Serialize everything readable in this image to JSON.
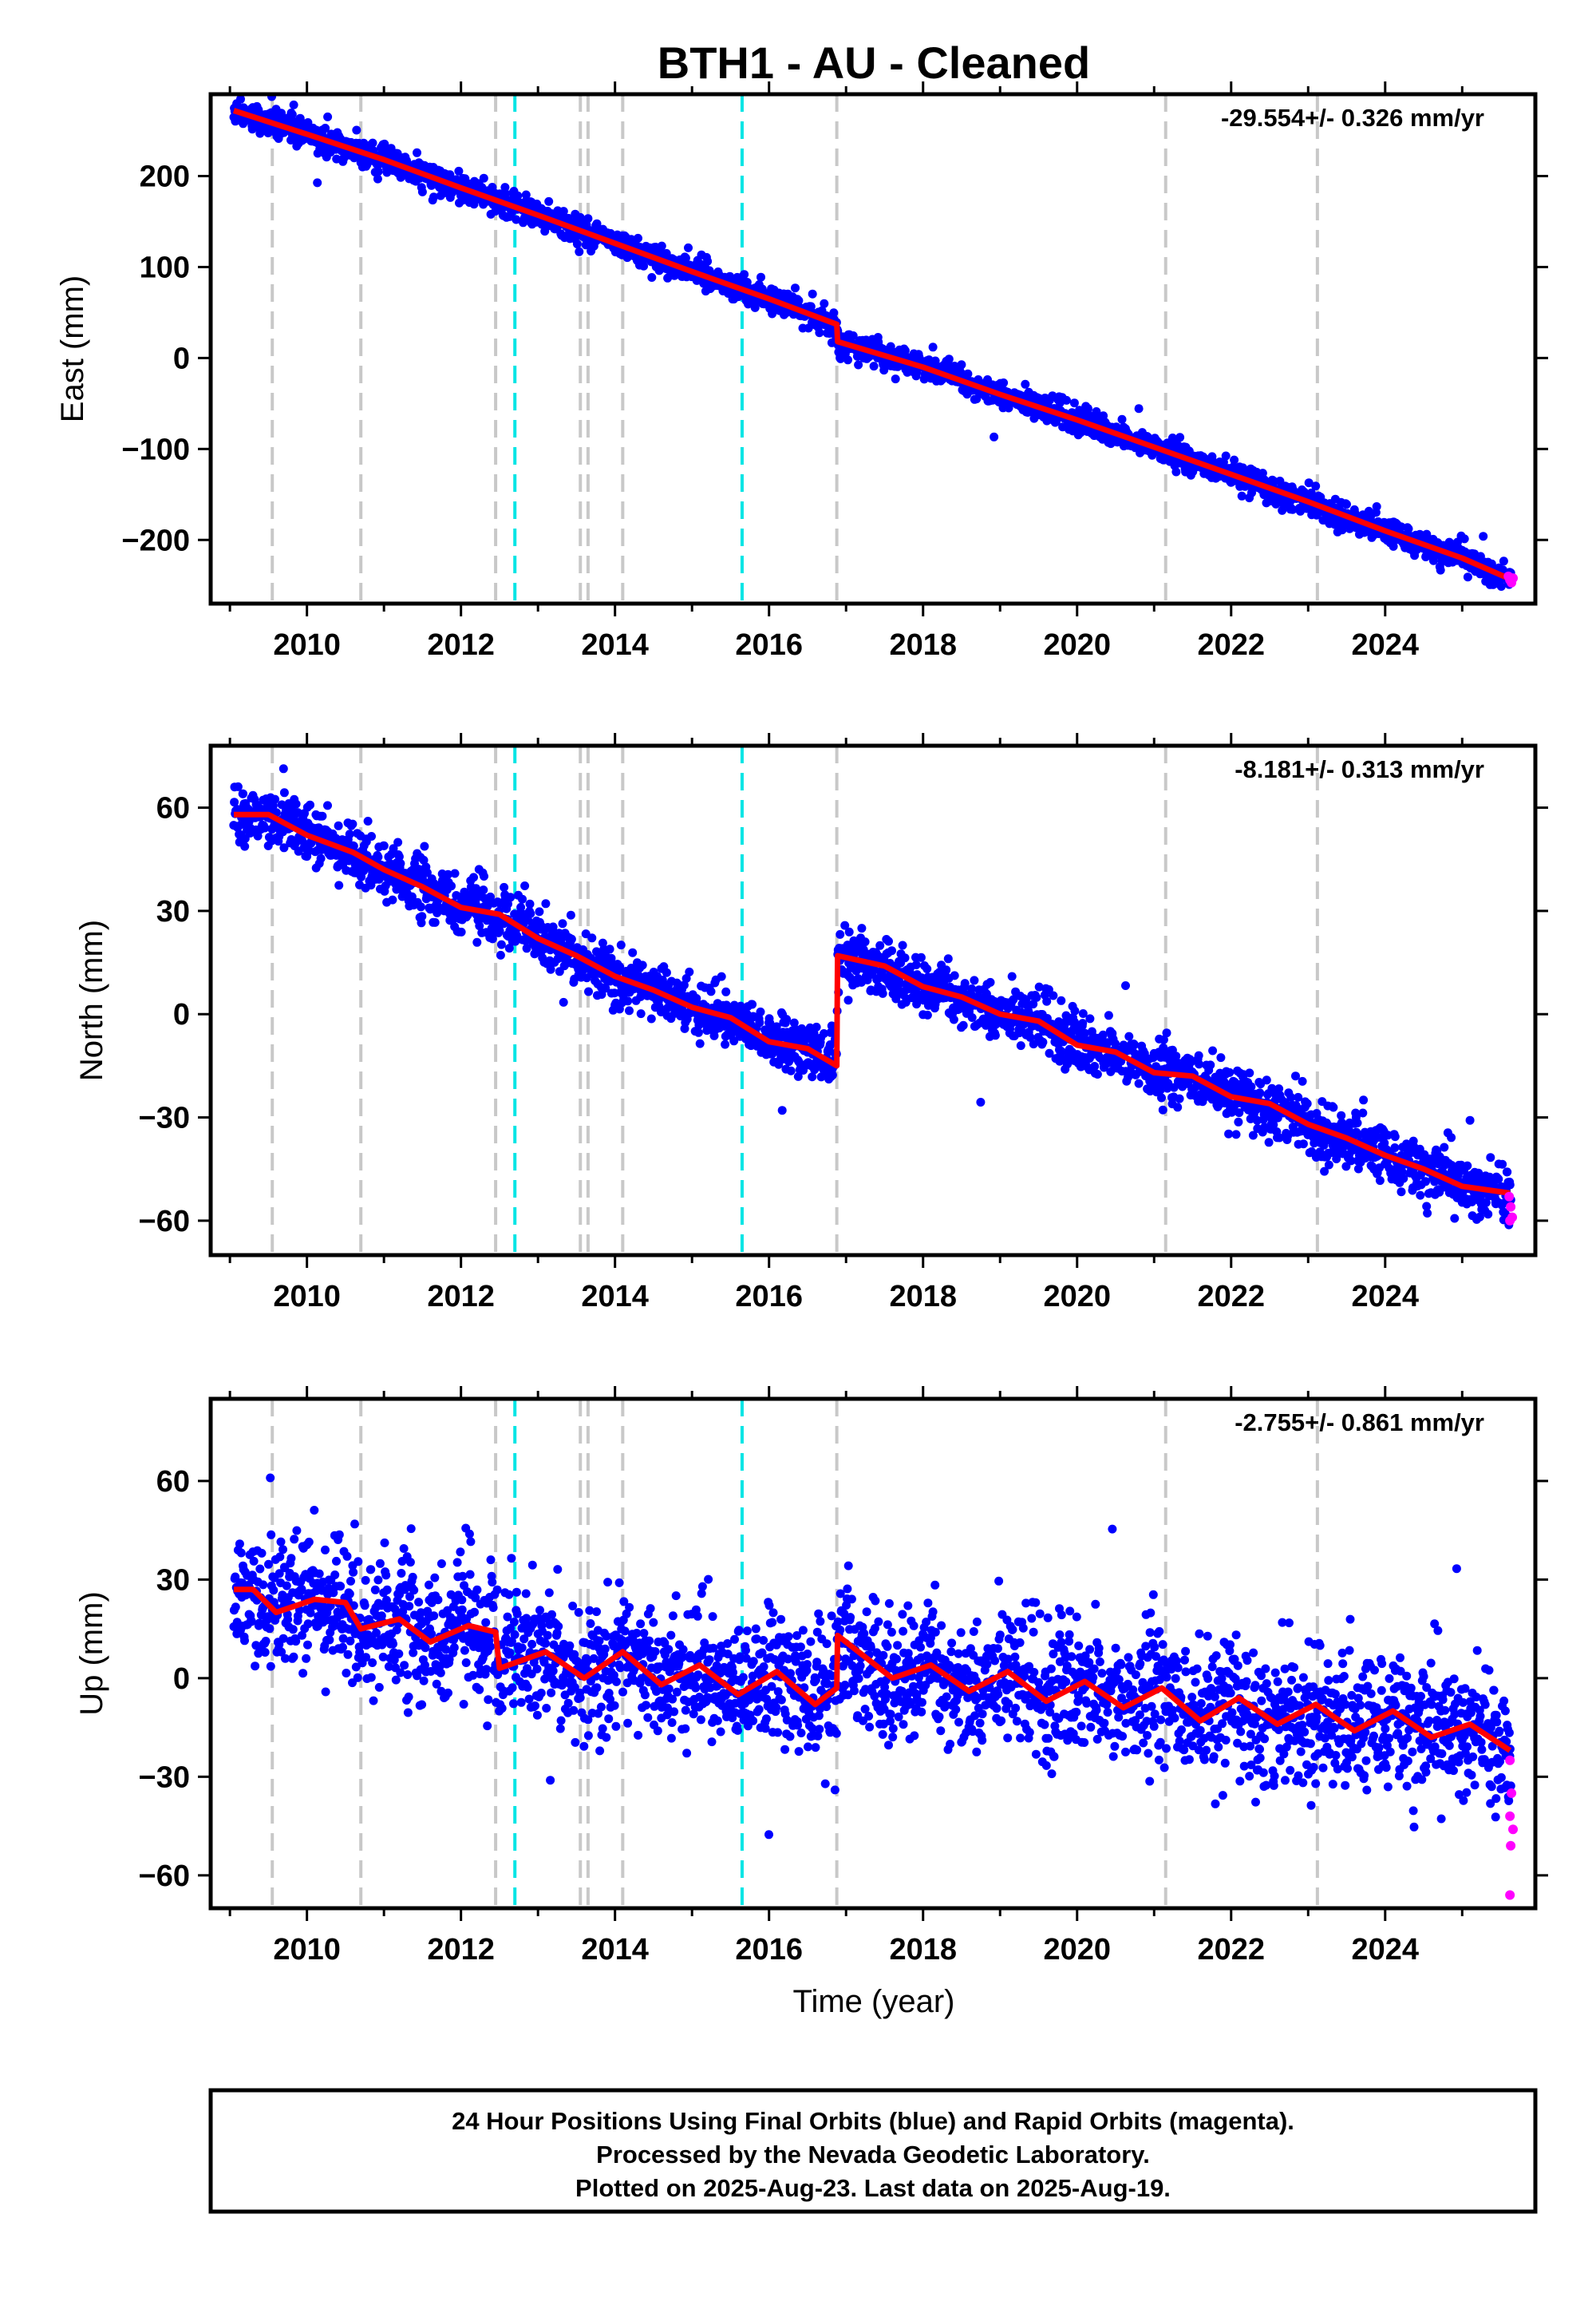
{
  "title": "BTH1  - AU - Cleaned",
  "xlabel": "Time (year)",
  "footer": [
    "24 Hour Positions Using Final Orbits (blue) and Rapid Orbits (magenta).",
    "Processed by the Nevada Geodetic Laboratory.",
    "Plotted on 2025-Aug-23. Last data on 2025-Aug-19."
  ],
  "colors": {
    "final": "#0000ff",
    "rapid": "#ff00ff",
    "model": "#ff0000",
    "event_gray": "#c8c8c8",
    "event_cyan": "#00e5e5"
  },
  "chart_data": [
    {
      "type": "scatter",
      "ylabel": "East (mm)",
      "rate": "-29.554+/- 0.326 mm/yr",
      "xlim": [
        2008.75,
        2025.95
      ],
      "ylim": [
        -270,
        290
      ],
      "x_ticks": [
        2010,
        2012,
        2014,
        2016,
        2018,
        2020,
        2022,
        2024
      ],
      "y_ticks": [
        -200,
        -100,
        0,
        100,
        200
      ],
      "y_tick_labels": [
        "−200",
        "−100",
        "0",
        "100",
        "200"
      ],
      "data_start": 2009.05,
      "data_end": 2025.63,
      "model": {
        "x": [
          2009.05,
          2010.0,
          2011.0,
          2012.0,
          2013.0,
          2014.0,
          2015.0,
          2016.0,
          2016.88,
          2016.89,
          2018.0,
          2019.0,
          2020.0,
          2021.0,
          2022.0,
          2023.0,
          2024.0,
          2025.0,
          2025.62
        ],
        "y": [
          272,
          246,
          218,
          187,
          157,
          126,
          95,
          65,
          37,
          18,
          -10,
          -40,
          -68,
          -98,
          -128,
          -158,
          -190,
          -220,
          -243
        ]
      },
      "scatter_spread": 7,
      "rapid_points": [
        [
          2025.6,
          -240
        ],
        [
          2025.62,
          -244
        ],
        [
          2025.64,
          -247
        ],
        [
          2025.66,
          -242
        ]
      ]
    },
    {
      "type": "scatter",
      "ylabel": "North (mm)",
      "rate": "-8.181+/- 0.313 mm/yr",
      "xlim": [
        2008.75,
        2025.95
      ],
      "ylim": [
        -70,
        78
      ],
      "x_ticks": [
        2010,
        2012,
        2014,
        2016,
        2018,
        2020,
        2022,
        2024
      ],
      "y_ticks": [
        -60,
        -30,
        0,
        30,
        60
      ],
      "y_tick_labels": [
        "−60",
        "−30",
        "0",
        "30",
        "60"
      ],
      "data_start": 2009.05,
      "data_end": 2025.63,
      "model": {
        "x": [
          2009.05,
          2009.5,
          2010.0,
          2010.6,
          2011.0,
          2011.5,
          2012.0,
          2012.5,
          2013.0,
          2013.5,
          2014.0,
          2014.5,
          2015.0,
          2015.5,
          2016.0,
          2016.5,
          2016.88,
          2016.89,
          2017.5,
          2018.0,
          2018.5,
          2019.0,
          2019.5,
          2020.0,
          2020.5,
          2021.0,
          2021.5,
          2022.0,
          2022.5,
          2023.0,
          2023.5,
          2024.0,
          2024.5,
          2025.0,
          2025.62
        ],
        "y": [
          58,
          58,
          52,
          47,
          42,
          37,
          31,
          29,
          22,
          17,
          11,
          7,
          2,
          -1,
          -8,
          -10,
          -15,
          17,
          14,
          8,
          5,
          0,
          -2,
          -9,
          -11,
          -17,
          -18,
          -24,
          -26,
          -32,
          -36,
          -41,
          -45,
          -50,
          -52
        ]
      },
      "scatter_spread": 4,
      "rapid_points": [
        [
          2025.61,
          -53
        ],
        [
          2025.63,
          -56
        ],
        [
          2025.65,
          -59
        ],
        [
          2025.62,
          -60
        ]
      ]
    },
    {
      "type": "scatter",
      "ylabel": "Up (mm)",
      "rate": "-2.755+/- 0.861 mm/yr",
      "xlim": [
        2008.75,
        2025.95
      ],
      "ylim": [
        -70,
        85
      ],
      "x_ticks": [
        2010,
        2012,
        2014,
        2016,
        2018,
        2020,
        2022,
        2024
      ],
      "y_ticks": [
        -60,
        -30,
        0,
        30,
        60
      ],
      "y_tick_labels": [
        "−60",
        "−30",
        "0",
        "30",
        "60"
      ],
      "data_start": 2009.05,
      "data_end": 2025.63,
      "model": {
        "x": [
          2009.05,
          2009.3,
          2009.6,
          2010.1,
          2010.5,
          2010.7,
          2011.2,
          2011.6,
          2012.1,
          2012.45,
          2012.5,
          2013.1,
          2013.6,
          2014.1,
          2014.6,
          2015.1,
          2015.6,
          2016.1,
          2016.6,
          2016.88,
          2016.89,
          2017.6,
          2018.1,
          2018.6,
          2019.1,
          2019.6,
          2020.1,
          2020.6,
          2021.1,
          2021.6,
          2022.1,
          2022.6,
          2023.1,
          2023.6,
          2024.1,
          2024.6,
          2025.1,
          2025.62
        ],
        "y": [
          27,
          27,
          20,
          24,
          23,
          15,
          18,
          11,
          16,
          14,
          3,
          8,
          0,
          8,
          -2,
          4,
          -5,
          2,
          -8,
          -3,
          13,
          0,
          4,
          -4,
          2,
          -7,
          -1,
          -9,
          -3,
          -13,
          -6,
          -14,
          -8,
          -16,
          -10,
          -18,
          -14,
          -22
        ]
      },
      "scatter_spread": 10,
      "rapid_points": [
        [
          2025.62,
          -25
        ],
        [
          2025.64,
          -35
        ],
        [
          2025.62,
          -42
        ],
        [
          2025.66,
          -46
        ],
        [
          2025.63,
          -51
        ],
        [
          2025.62,
          -66
        ]
      ]
    }
  ],
  "events_gray": [
    2009.55,
    2010.7,
    2012.45,
    2013.55,
    2013.65,
    2014.1,
    2016.88,
    2021.15,
    2023.12
  ],
  "events_cyan": [
    2012.7,
    2015.65
  ]
}
